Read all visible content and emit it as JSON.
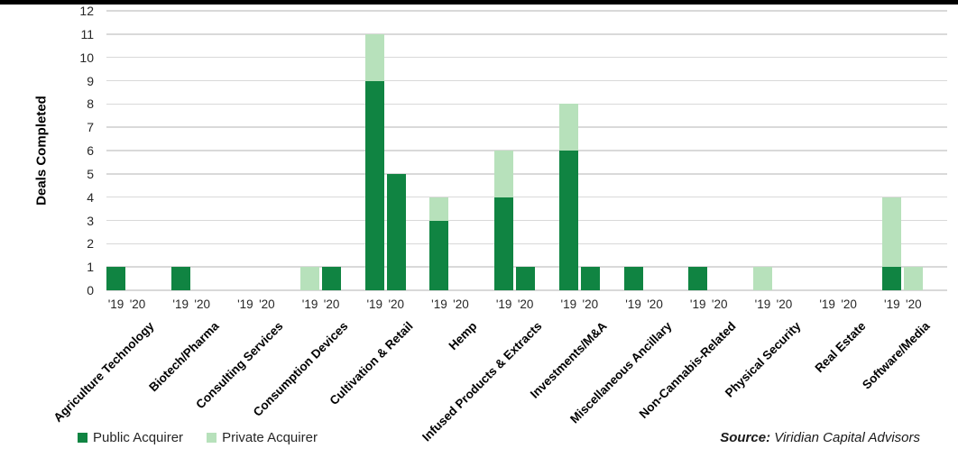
{
  "chart_data": {
    "type": "bar",
    "stacked": true,
    "title": "",
    "xlabel": "",
    "ylabel": "Deals Completed",
    "ylim": [
      0,
      12
    ],
    "yticks": [
      0,
      1,
      2,
      3,
      4,
      5,
      6,
      7,
      8,
      9,
      10,
      11,
      12
    ],
    "grid": true,
    "legend_position": "bottom-left",
    "categories": [
      "Agriculture Technology",
      "Biotech/Pharma",
      "Consulting Services",
      "Consumption Devices",
      "Cultivation & Retail",
      "Hemp",
      "Infused Products & Extracts",
      "Investments/M&A",
      "Miscellaneous Ancillary",
      "Non-Cannabis-Related",
      "Physical Security",
      "Real Estate",
      "Software/Media"
    ],
    "bar_labels": [
      "'19",
      "'20"
    ],
    "series": [
      {
        "name": "Public Acquirer",
        "color": "#108442",
        "values": [
          [
            1,
            1,
            0,
            0,
            9,
            3,
            4,
            6,
            1,
            1,
            0,
            0,
            1
          ],
          [
            0,
            0,
            0,
            1,
            5,
            0,
            1,
            1,
            0,
            0,
            0,
            0,
            0
          ]
        ]
      },
      {
        "name": "Private Acquirer",
        "color": "#b7e1bb",
        "values": [
          [
            0,
            0,
            0,
            1,
            2,
            1,
            2,
            2,
            0,
            0,
            1,
            0,
            3
          ],
          [
            0,
            0,
            0,
            0,
            0,
            0,
            0,
            0,
            0,
            0,
            0,
            0,
            1
          ]
        ]
      }
    ]
  },
  "legend": {
    "items": [
      {
        "label": "Public Acquirer",
        "color": "#108442"
      },
      {
        "label": "Private Acquirer",
        "color": "#b7e1bb"
      }
    ]
  },
  "source": {
    "prefix": "Source:",
    "text": " Viridian Capital Advisors"
  }
}
